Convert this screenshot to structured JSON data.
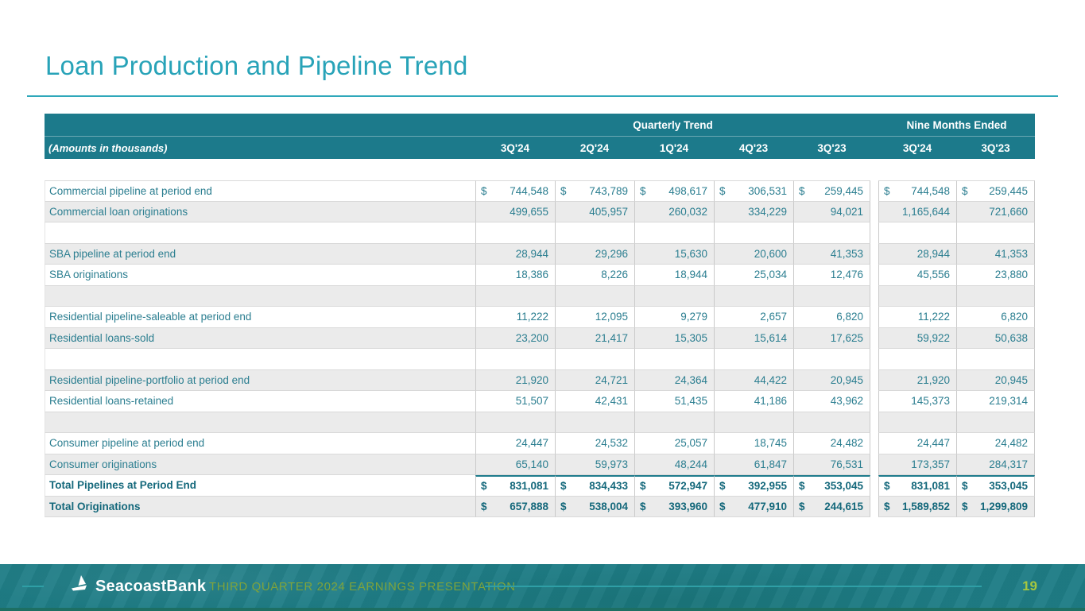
{
  "slide": {
    "title": "Loan Production and Pipeline Trend"
  },
  "table": {
    "currency_symbol": "$",
    "group_headers": {
      "quarterly": "Quarterly Trend",
      "nine_months": "Nine Months Ended"
    },
    "amounts_note": "(Amounts in thousands)",
    "columns": [
      "3Q'24",
      "2Q'24",
      "1Q'24",
      "4Q'23",
      "3Q'23",
      "3Q'24",
      "3Q'23"
    ],
    "rows": [
      {
        "label": "Commercial pipeline at period end",
        "dollar": true,
        "values": [
          "744,548",
          "743,789",
          "498,617",
          "306,531",
          "259,445",
          "744,548",
          "259,445"
        ]
      },
      {
        "label": "Commercial loan originations",
        "values": [
          "499,655",
          "405,957",
          "260,032",
          "334,229",
          "94,021",
          "1,165,644",
          "721,660"
        ]
      },
      {
        "label": "",
        "spacer": true,
        "values": []
      },
      {
        "label": "SBA pipeline at period end",
        "values": [
          "28,944",
          "29,296",
          "15,630",
          "20,600",
          "41,353",
          "28,944",
          "41,353"
        ]
      },
      {
        "label": "SBA originations",
        "values": [
          "18,386",
          "8,226",
          "18,944",
          "25,034",
          "12,476",
          "45,556",
          "23,880"
        ]
      },
      {
        "label": "",
        "spacer": true,
        "values": []
      },
      {
        "label": "Residential pipeline-saleable at period end",
        "values": [
          "11,222",
          "12,095",
          "9,279",
          "2,657",
          "6,820",
          "11,222",
          "6,820"
        ]
      },
      {
        "label": "Residential loans-sold",
        "values": [
          "23,200",
          "21,417",
          "15,305",
          "15,614",
          "17,625",
          "59,922",
          "50,638"
        ]
      },
      {
        "label": "",
        "spacer": true,
        "values": []
      },
      {
        "label": "Residential pipeline-portfolio at period end",
        "values": [
          "21,920",
          "24,721",
          "24,364",
          "44,422",
          "20,945",
          "21,920",
          "20,945"
        ]
      },
      {
        "label": "Residential loans-retained",
        "values": [
          "51,507",
          "42,431",
          "51,435",
          "41,186",
          "43,962",
          "145,373",
          "219,314"
        ]
      },
      {
        "label": "",
        "spacer": true,
        "values": []
      },
      {
        "label": "Consumer pipeline at period end",
        "values": [
          "24,447",
          "24,532",
          "25,057",
          "18,745",
          "24,482",
          "24,447",
          "24,482"
        ]
      },
      {
        "label": "Consumer originations",
        "values": [
          "65,140",
          "59,973",
          "48,244",
          "61,847",
          "76,531",
          "173,357",
          "284,317"
        ]
      },
      {
        "label": "Total Pipelines at Period End",
        "dollar": true,
        "is_total": true,
        "rule_above": true,
        "values": [
          "831,081",
          "834,433",
          "572,947",
          "392,955",
          "353,045",
          "831,081",
          "353,045"
        ]
      },
      {
        "label": "Total Originations",
        "dollar": true,
        "is_total": true,
        "values": [
          "657,888",
          "538,004",
          "393,960",
          "477,910",
          "244,615",
          "1,589,852",
          "1,299,809"
        ]
      }
    ]
  },
  "footer": {
    "logo_text": "SeacoastBank",
    "caption": "THIRD QUARTER 2024 EARNINGS PRESENTATION",
    "page_number": "19"
  },
  "colors": {
    "title_teal": "#28a3b8",
    "header_band": "#1c7a8b",
    "row_text": "#2b7e90",
    "total_text": "#14687b",
    "alt_row_bg": "#ebebeb",
    "footer_bg": "#1f7d86",
    "footer_stripe": "#1d6f63",
    "caption_green": "#7fa33b",
    "page_number_green": "#a6c73f"
  }
}
